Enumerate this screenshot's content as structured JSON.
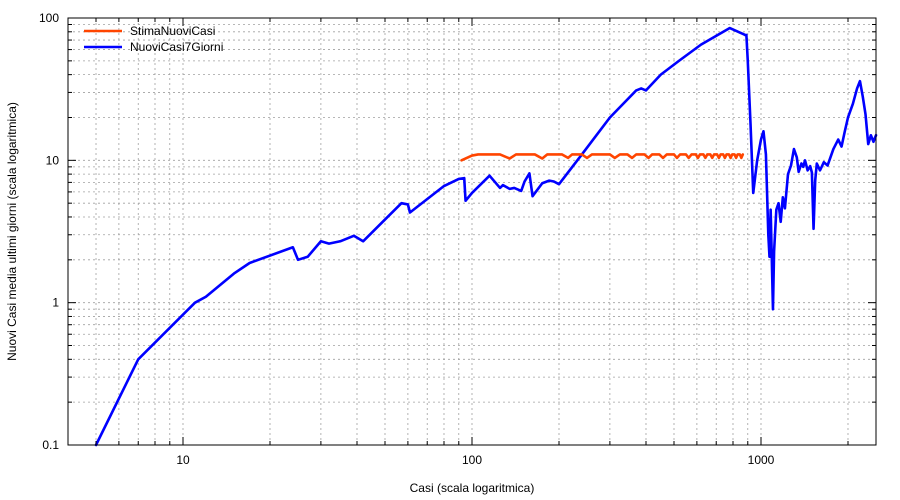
{
  "chart_data": {
    "type": "line",
    "xlabel": "Casi (scala logaritmica)",
    "ylabel": "Nuovi Casi media ultimi giorni (scala logaritmica)",
    "xscale": "log",
    "yscale": "log",
    "xlim": [
      4,
      2500
    ],
    "ylim": [
      0.1,
      100
    ],
    "grid": true,
    "legend_position": "top-left",
    "x_tick_labels": [
      {
        "value": 10,
        "label": "10"
      },
      {
        "value": 100,
        "label": "100"
      },
      {
        "value": 1000,
        "label": "1000"
      }
    ],
    "y_tick_labels": [
      {
        "value": 0.1,
        "label": "0.1"
      },
      {
        "value": 1,
        "label": "1"
      },
      {
        "value": 10,
        "label": "10"
      },
      {
        "value": 100,
        "label": "100"
      }
    ],
    "series": [
      {
        "name": "StimaNuoviCasi",
        "color": "#ff4500",
        "points": [
          [
            92,
            10.0
          ],
          [
            100,
            10.8
          ],
          [
            105,
            11.0
          ],
          [
            125,
            11.0
          ],
          [
            135,
            10.3
          ],
          [
            142,
            11.0
          ],
          [
            165,
            11.0
          ],
          [
            175,
            10.3
          ],
          [
            182,
            11.0
          ],
          [
            205,
            11.0
          ],
          [
            215,
            10.4
          ],
          [
            222,
            11.0
          ],
          [
            240,
            11.0
          ],
          [
            250,
            10.4
          ],
          [
            260,
            11.0
          ],
          [
            300,
            11.0
          ],
          [
            312,
            10.4
          ],
          [
            325,
            11.0
          ],
          [
            345,
            11.0
          ],
          [
            358,
            10.4
          ],
          [
            370,
            11.0
          ],
          [
            395,
            11.0
          ],
          [
            408,
            10.4
          ],
          [
            420,
            11.0
          ],
          [
            445,
            11.0
          ],
          [
            458,
            10.4
          ],
          [
            472,
            11.0
          ],
          [
            500,
            11.0
          ],
          [
            512,
            10.4
          ],
          [
            525,
            11.0
          ],
          [
            550,
            11.0
          ],
          [
            562,
            10.4
          ],
          [
            575,
            11.0
          ],
          [
            595,
            11.0
          ],
          [
            605,
            10.4
          ],
          [
            615,
            11.0
          ],
          [
            632,
            11.0
          ],
          [
            642,
            10.4
          ],
          [
            652,
            11.0
          ],
          [
            668,
            11.0
          ],
          [
            678,
            10.4
          ],
          [
            688,
            11.0
          ],
          [
            705,
            11.0
          ],
          [
            715,
            10.4
          ],
          [
            725,
            11.0
          ],
          [
            740,
            11.0
          ],
          [
            750,
            10.4
          ],
          [
            760,
            11.0
          ],
          [
            775,
            11.0
          ],
          [
            785,
            10.4
          ],
          [
            795,
            11.0
          ],
          [
            810,
            11.0
          ],
          [
            820,
            10.4
          ],
          [
            830,
            11.0
          ],
          [
            845,
            11.0
          ],
          [
            855,
            10.4
          ],
          [
            865,
            11.0
          ]
        ]
      },
      {
        "name": "NuoviCasi7Giorni",
        "color": "#0000ff",
        "points": [
          [
            5,
            0.1
          ],
          [
            7,
            0.4
          ],
          [
            11,
            1.0
          ],
          [
            12,
            1.1
          ],
          [
            15,
            1.6
          ],
          [
            17,
            1.9
          ],
          [
            24,
            2.45
          ],
          [
            25,
            2.0
          ],
          [
            27,
            2.1
          ],
          [
            30,
            2.7
          ],
          [
            32,
            2.6
          ],
          [
            35,
            2.7
          ],
          [
            39,
            2.95
          ],
          [
            42,
            2.7
          ],
          [
            57,
            5.0
          ],
          [
            60,
            4.9
          ],
          [
            61,
            4.3
          ],
          [
            80,
            6.6
          ],
          [
            90,
            7.4
          ],
          [
            94,
            7.5
          ],
          [
            95,
            5.2
          ],
          [
            100,
            5.9
          ],
          [
            115,
            7.8
          ],
          [
            125,
            6.4
          ],
          [
            128,
            6.7
          ],
          [
            135,
            6.3
          ],
          [
            140,
            6.4
          ],
          [
            148,
            6.1
          ],
          [
            152,
            7.1
          ],
          [
            158,
            8.1
          ],
          [
            162,
            5.6
          ],
          [
            175,
            6.9
          ],
          [
            185,
            7.2
          ],
          [
            192,
            7.1
          ],
          [
            200,
            6.8
          ],
          [
            240,
            11.0
          ],
          [
            300,
            20.0
          ],
          [
            370,
            31.0
          ],
          [
            385,
            32.0
          ],
          [
            400,
            31.0
          ],
          [
            450,
            40.0
          ],
          [
            520,
            50.0
          ],
          [
            620,
            65.0
          ],
          [
            780,
            85.0
          ],
          [
            870,
            77.0
          ],
          [
            880,
            76.0
          ],
          [
            890,
            76.0
          ],
          [
            900,
            50.0
          ],
          [
            920,
            18.0
          ],
          [
            940,
            5.9
          ],
          [
            970,
            10.0
          ],
          [
            1000,
            14.0
          ],
          [
            1020,
            16.0
          ],
          [
            1040,
            11.0
          ],
          [
            1060,
            3.0
          ],
          [
            1070,
            2.1
          ],
          [
            1080,
            4.5
          ],
          [
            1090,
            2.0
          ],
          [
            1100,
            0.9
          ],
          [
            1110,
            2.3
          ],
          [
            1130,
            4.5
          ],
          [
            1150,
            5.0
          ],
          [
            1170,
            3.7
          ],
          [
            1190,
            5.5
          ],
          [
            1210,
            4.6
          ],
          [
            1240,
            8.0
          ],
          [
            1270,
            9.2
          ],
          [
            1300,
            12.0
          ],
          [
            1330,
            10.5
          ],
          [
            1350,
            8.3
          ],
          [
            1380,
            9.5
          ],
          [
            1400,
            9.0
          ],
          [
            1420,
            10.0
          ],
          [
            1450,
            8.5
          ],
          [
            1480,
            9.1
          ],
          [
            1500,
            8.2
          ],
          [
            1520,
            3.3
          ],
          [
            1540,
            7.2
          ],
          [
            1560,
            9.5
          ],
          [
            1600,
            8.5
          ],
          [
            1650,
            9.7
          ],
          [
            1700,
            9.2
          ],
          [
            1780,
            12.0
          ],
          [
            1850,
            14.0
          ],
          [
            1900,
            12.5
          ],
          [
            1950,
            16.0
          ],
          [
            2000,
            20.0
          ],
          [
            2080,
            25.0
          ],
          [
            2150,
            32.0
          ],
          [
            2200,
            36.0
          ],
          [
            2250,
            28.0
          ],
          [
            2300,
            21.0
          ],
          [
            2350,
            13.0
          ],
          [
            2400,
            15.0
          ],
          [
            2450,
            13.5
          ],
          [
            2500,
            15.0
          ]
        ]
      }
    ]
  }
}
